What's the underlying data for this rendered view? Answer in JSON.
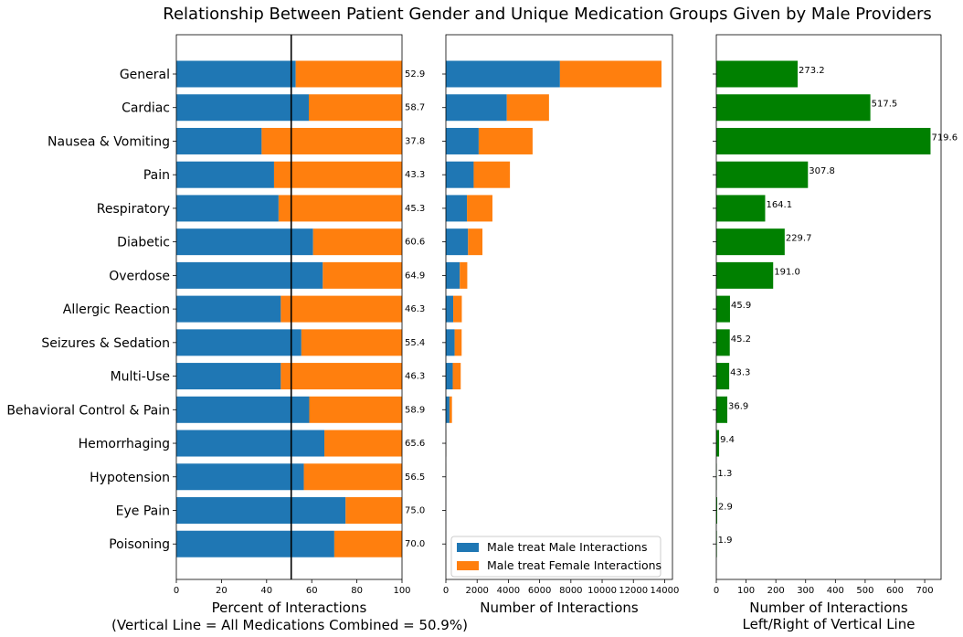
{
  "title": "Relationship Between Patient Gender and Unique Medication Groups Given by Male Providers",
  "colors": {
    "male": "#1f77b4",
    "female": "#ff7f0e",
    "diff": "#008000",
    "refline": "#000000"
  },
  "chart_data": [
    {
      "type": "bar",
      "orientation": "horizontal",
      "stacked": true,
      "xlabel": "Percent of Interactions",
      "xlabel2": "(Vertical Line = All Medications Combined = 50.9%)",
      "xlim": [
        0,
        100
      ],
      "xticks": [
        "0",
        "20",
        "40",
        "60",
        "80",
        "100"
      ],
      "reference_line": 50.9,
      "categories": [
        "General",
        "Cardiac",
        "Nausea & Vomiting",
        "Pain",
        "Respiratory",
        "Diabetic",
        "Overdose",
        "Allergic Reaction",
        "Seizures & Sedation",
        "Multi-Use",
        "Behavioral Control & Pain",
        "Hemorrhaging",
        "Hypotension",
        "Eye Pain",
        "Poisoning"
      ],
      "series": [
        {
          "values": [
            52.9,
            58.7,
            37.8,
            43.3,
            45.3,
            60.6,
            64.9,
            46.3,
            55.4,
            46.3,
            58.9,
            65.6,
            56.5,
            75.0,
            70.0
          ]
        },
        {
          "values": [
            47.1,
            41.3,
            62.2,
            56.7,
            54.7,
            39.4,
            35.1,
            53.7,
            44.6,
            53.7,
            41.1,
            34.4,
            43.5,
            25.0,
            30.0
          ]
        }
      ],
      "data_labels": [
        "52.9",
        "58.7",
        "37.8",
        "43.3",
        "45.3",
        "60.6",
        "64.9",
        "46.3",
        "55.4",
        "46.3",
        "58.9",
        "65.6",
        "56.5",
        "75.0",
        "70.0"
      ]
    },
    {
      "type": "bar",
      "orientation": "horizontal",
      "stacked": true,
      "xlabel": "Number of Interactions",
      "xlim": [
        0,
        14500
      ],
      "xticks": [
        "0",
        "2000",
        "4000",
        "6000",
        "8000",
        "10000",
        "12000",
        "14000"
      ],
      "categories": [
        "General",
        "Cardiac",
        "Nausea & Vomiting",
        "Pain",
        "Respiratory",
        "Diabetic",
        "Overdose",
        "Allergic Reaction",
        "Seizures & Sedation",
        "Multi-Use",
        "Behavioral Control & Pain",
        "Hemorrhaging",
        "Hypotension",
        "Eye Pain",
        "Poisoning"
      ],
      "series": [
        {
          "name": "Male treat Male Interactions",
          "values": [
            7300,
            3900,
            2100,
            1780,
            1350,
            1420,
            890,
            470,
            560,
            440,
            230,
            18,
            3,
            1,
            1
          ]
        },
        {
          "name": "Male treat Female Interactions",
          "values": [
            6500,
            2700,
            3450,
            2320,
            1630,
            920,
            480,
            550,
            450,
            510,
            160,
            9,
            2,
            0,
            1
          ]
        }
      ],
      "legend": "lower-left"
    },
    {
      "type": "bar",
      "orientation": "horizontal",
      "xlabel": "Number of Interactions",
      "xlabel2": "Left/Right of Vertical Line",
      "xlim": [
        0,
        755
      ],
      "xticks": [
        "0",
        "100",
        "200",
        "300",
        "400",
        "500",
        "600",
        "700"
      ],
      "categories": [
        "General",
        "Cardiac",
        "Nausea & Vomiting",
        "Pain",
        "Respiratory",
        "Diabetic",
        "Overdose",
        "Allergic Reaction",
        "Seizures & Sedation",
        "Multi-Use",
        "Behavioral Control & Pain",
        "Hemorrhaging",
        "Hypotension",
        "Eye Pain",
        "Poisoning"
      ],
      "values": [
        273.2,
        517.5,
        719.6,
        307.8,
        164.1,
        229.7,
        191.0,
        45.9,
        45.2,
        43.3,
        36.9,
        9.4,
        1.3,
        2.9,
        1.9
      ],
      "data_labels": [
        "273.2",
        "517.5",
        "719.6",
        "307.8",
        "164.1",
        "229.7",
        "191.0",
        "45.9",
        "45.2",
        "43.3",
        "36.9",
        "9.4",
        "1.3",
        "2.9",
        "1.9"
      ]
    }
  ]
}
